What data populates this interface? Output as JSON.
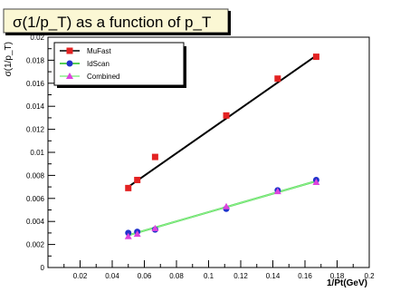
{
  "chart_data": {
    "type": "scatter",
    "title": "σ(1/p_T) as a function of p_T",
    "xlabel": "1/Pt(GeV)",
    "ylabel": "σ(1/p_T)",
    "xlim": [
      0,
      0.2
    ],
    "ylim": [
      0,
      0.02
    ],
    "x_ticks": [
      "0.02",
      "0.04",
      "0.06",
      "0.08",
      "0.1",
      "0.12",
      "0.14",
      "0.16",
      "0.18",
      "0.2"
    ],
    "y_ticks": [
      "0",
      "0.002",
      "0.004",
      "0.006",
      "0.008",
      "0.01",
      "0.012",
      "0.014",
      "0.016",
      "0.018",
      "0.02"
    ],
    "legend_position": "top-left",
    "grid": false,
    "series": [
      {
        "name": "MuFast",
        "color": "#e32222",
        "marker": "square",
        "x": [
          0.05,
          0.0556,
          0.0667,
          0.111,
          0.143,
          0.167
        ],
        "y": [
          0.0069,
          0.0076,
          0.0096,
          0.0132,
          0.0164,
          0.0183
        ],
        "fit": {
          "color": "#000000",
          "x": [
            0.05,
            0.167
          ],
          "y": [
            0.007,
            0.0184
          ]
        }
      },
      {
        "name": "IdScan",
        "color": "#2233cc",
        "marker": "circle",
        "x": [
          0.05,
          0.0556,
          0.0667,
          0.111,
          0.143,
          0.167
        ],
        "y": [
          0.003,
          0.0031,
          0.0033,
          0.0051,
          0.0067,
          0.0076
        ],
        "fit": {
          "color": "#1fbf1f",
          "x": [
            0.05,
            0.167
          ],
          "y": [
            0.0028,
            0.0075
          ]
        }
      },
      {
        "name": "Combined",
        "color": "#dd44dd",
        "marker": "triangle",
        "x": [
          0.05,
          0.0556,
          0.0667,
          0.111,
          0.143,
          0.167
        ],
        "y": [
          0.0027,
          0.0029,
          0.0034,
          0.0053,
          0.0066,
          0.0074
        ],
        "fit": {
          "color": "#88ee88",
          "x": [
            0.05,
            0.167
          ],
          "y": [
            0.0028,
            0.0075
          ]
        }
      }
    ]
  }
}
